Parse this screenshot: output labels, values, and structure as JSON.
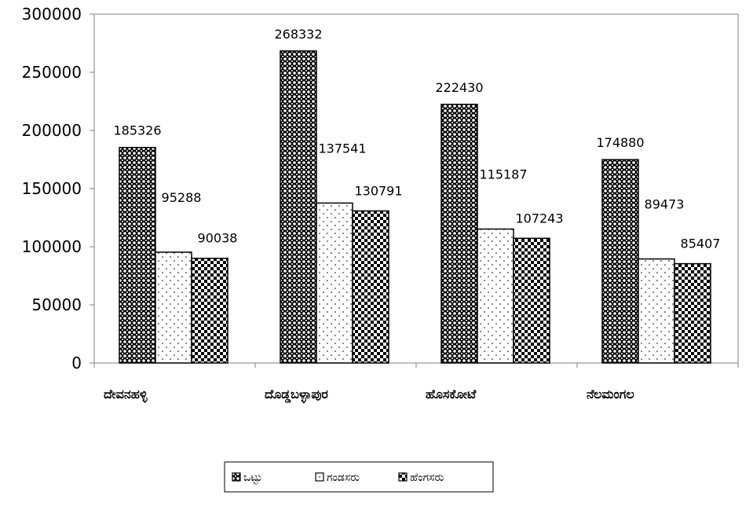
{
  "chart_data": {
    "type": "bar",
    "categories": [
      "ದೇವನಹಳ್ಳಿ",
      "ದೊಡ್ಡಬಳ್ಳಾಪುರ",
      "ಹೊಸಕೋಟೆ",
      "ನೆಲಮಂಗಲ"
    ],
    "series": [
      {
        "name": "ಒಟ್ಟು",
        "values": [
          185326,
          268332,
          222430,
          174880
        ],
        "pattern": "dense-dots"
      },
      {
        "name": "ಗಂಡಸರು",
        "values": [
          95288,
          137541,
          115187,
          89473
        ],
        "pattern": "sparse-dots"
      },
      {
        "name": "ಹೆಂಗಸರು",
        "values": [
          90038,
          130791,
          107243,
          85407
        ],
        "pattern": "checker"
      }
    ],
    "ylim": [
      0,
      300000
    ],
    "yticks": [
      0,
      50000,
      100000,
      150000,
      200000,
      250000,
      300000
    ],
    "title": "",
    "xlabel": "",
    "ylabel": "",
    "grid": false,
    "legend_position": "bottom-center",
    "colors": {
      "bar_fill": "#000000",
      "bar_bg": "#ffffff",
      "axis": "#808080"
    }
  }
}
